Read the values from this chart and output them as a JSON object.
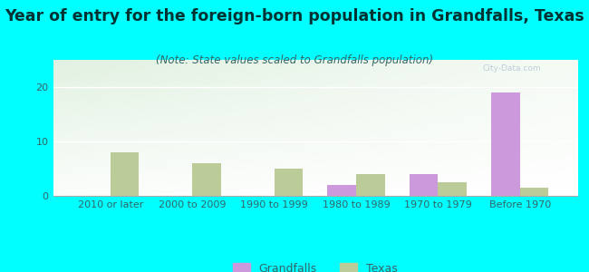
{
  "title": "Year of entry for the foreign-born population in Grandfalls, Texas",
  "subtitle": "(Note: State values scaled to Grandfalls population)",
  "categories": [
    "2010 or later",
    "2000 to 2009",
    "1990 to 1999",
    "1980 to 1989",
    "1970 to 1979",
    "Before 1970"
  ],
  "grandfalls_values": [
    0,
    0,
    0,
    2,
    4,
    19
  ],
  "texas_values": [
    8,
    6,
    5,
    4,
    2.5,
    1.5
  ],
  "grandfalls_color": "#cc99dd",
  "texas_color": "#bbcc99",
  "background_color": "#00ffff",
  "ylim": [
    0,
    25
  ],
  "yticks": [
    0,
    10,
    20
  ],
  "bar_width": 0.35,
  "title_fontsize": 12.5,
  "subtitle_fontsize": 8.5,
  "tick_fontsize": 8,
  "legend_fontsize": 9,
  "title_color": "#003333",
  "subtitle_color": "#336666",
  "tick_color": "#336666"
}
